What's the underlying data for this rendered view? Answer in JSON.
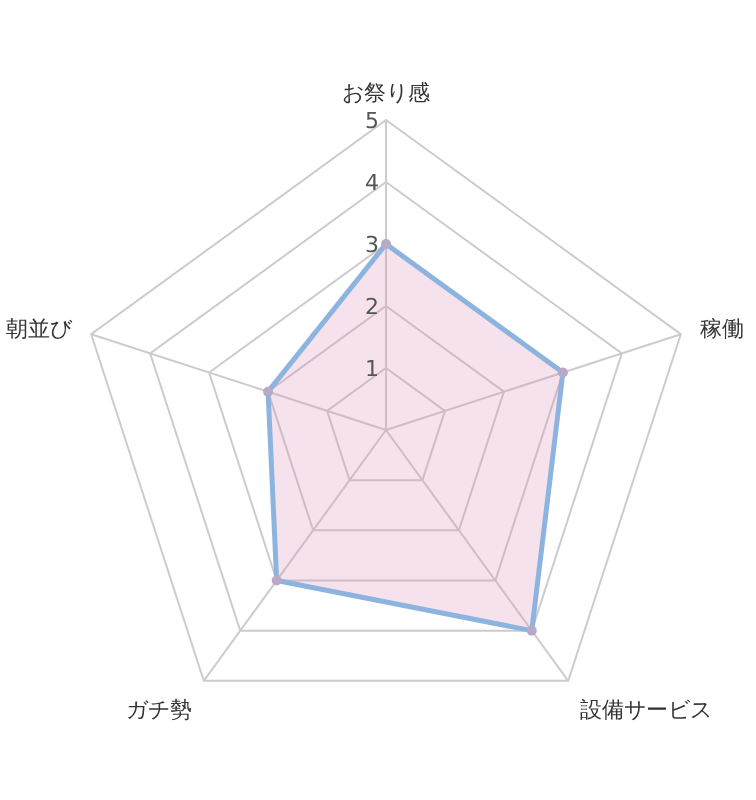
{
  "chart_data": {
    "type": "radar",
    "categories": [
      "お祭り感",
      "稼働",
      "設備サービス",
      "ガチ勢",
      "朝並び"
    ],
    "series": [
      {
        "color": "#8cb4de",
        "values": [
          3,
          3,
          4,
          3,
          2
        ]
      }
    ],
    "ylim": [
      0,
      5
    ],
    "yticks": [
      1,
      2,
      3,
      4,
      5
    ],
    "grid": true,
    "marker": "circle",
    "line_style": "solid"
  }
}
